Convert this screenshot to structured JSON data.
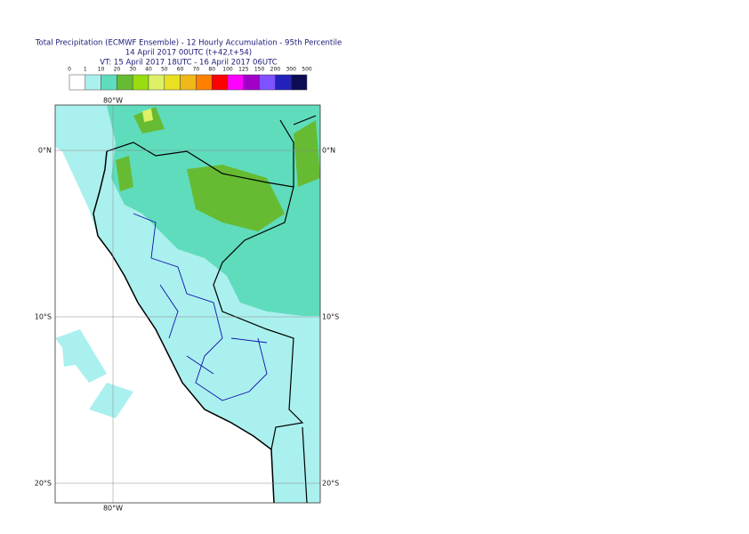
{
  "header": {
    "title": "Total Precipitation (ECMWF Ensemble) - 12 Hourly Accumulation - 95th Percentile",
    "run": "14 April 2017 00UTC (t+42,t+54)",
    "valid": "VT: 15 April 2017 18UTC - 16 April 2017 06UTC"
  },
  "legend": {
    "ticks": [
      0,
      1,
      10,
      20,
      30,
      40,
      50,
      60,
      70,
      80,
      100,
      125,
      150,
      200,
      300,
      500
    ],
    "colors": [
      "#ffffff",
      "#aaf0ee",
      "#5fdcbc",
      "#66bb33",
      "#99dd11",
      "#ddf066",
      "#e8e020",
      "#f0b818",
      "#ff8000",
      "#ff0000",
      "#ff00ff",
      "#a000c8",
      "#7d52ff",
      "#2222bb",
      "#0c0c55"
    ]
  },
  "map": {
    "lat_labels": [
      "0°N",
      "10°S",
      "20°S"
    ],
    "lon_labels": [
      "80°W"
    ]
  }
}
